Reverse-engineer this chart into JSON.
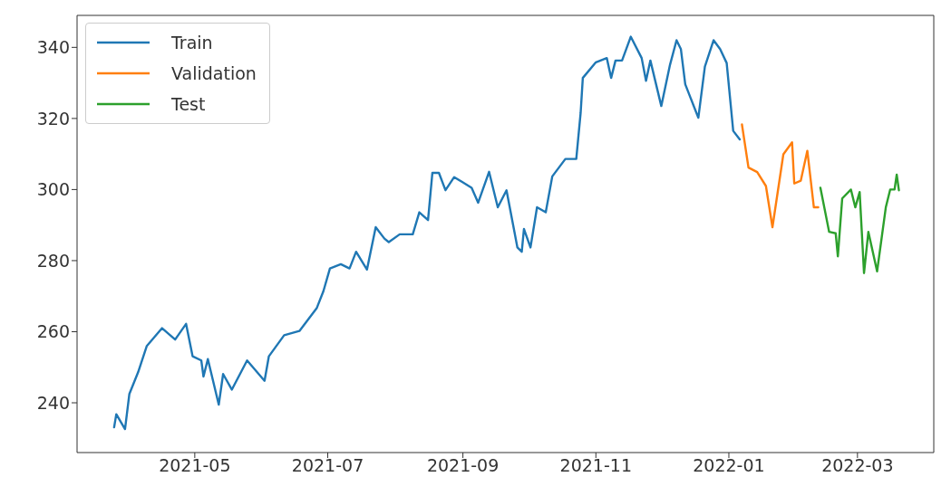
{
  "chart_data": {
    "type": "line",
    "xlim": [
      "2021-03-08",
      "2022-04-05"
    ],
    "xticks": [
      "2021-05",
      "2021-07",
      "2021-09",
      "2021-11",
      "2022-01",
      "2022-03"
    ],
    "ylim": [
      226,
      349
    ],
    "yticks": [
      240,
      260,
      280,
      300,
      320,
      340
    ],
    "legend": "top left",
    "line_style": "solid",
    "marker": "none",
    "series": [
      {
        "name": "Train",
        "color": "#1f77b4",
        "x": [
          "2021-03-25",
          "2021-03-26",
          "2021-03-30",
          "2021-04-01",
          "2021-04-05",
          "2021-04-09",
          "2021-04-16",
          "2021-04-22",
          "2021-04-27",
          "2021-04-30",
          "2021-05-04",
          "2021-05-05",
          "2021-05-07",
          "2021-05-12",
          "2021-05-14",
          "2021-05-18",
          "2021-05-25",
          "2021-06-02",
          "2021-06-04",
          "2021-06-11",
          "2021-06-18",
          "2021-06-26",
          "2021-06-29",
          "2021-07-02",
          "2021-07-07",
          "2021-07-11",
          "2021-07-14",
          "2021-07-19",
          "2021-07-23",
          "2021-07-27",
          "2021-07-29",
          "2021-08-03",
          "2021-08-09",
          "2021-08-12",
          "2021-08-16",
          "2021-08-18",
          "2021-08-21",
          "2021-08-24",
          "2021-08-28",
          "2021-09-05",
          "2021-09-08",
          "2021-09-13",
          "2021-09-17",
          "2021-09-21",
          "2021-09-26",
          "2021-09-28",
          "2021-09-29",
          "2021-10-02",
          "2021-10-05",
          "2021-10-09",
          "2021-10-12",
          "2021-10-18",
          "2021-10-23",
          "2021-10-25",
          "2021-10-26",
          "2021-11-01",
          "2021-11-06",
          "2021-11-08",
          "2021-11-10",
          "2021-11-13",
          "2021-11-17",
          "2021-11-22",
          "2021-11-24",
          "2021-11-26",
          "2021-12-01",
          "2021-12-05",
          "2021-12-08",
          "2021-12-10",
          "2021-12-12",
          "2021-12-18",
          "2021-12-21",
          "2021-12-25",
          "2021-12-28",
          "2021-12-31",
          "2022-01-03",
          "2022-01-06"
        ],
        "values": [
          233.1,
          236.8,
          232.6,
          242.5,
          248.6,
          256,
          261,
          257.8,
          262.2,
          253.1,
          251.9,
          247.4,
          252.3,
          239.5,
          248.1,
          243.7,
          251.9,
          246.2,
          253.1,
          259,
          260.2,
          266.7,
          271.4,
          277.8,
          279,
          277.8,
          282.5,
          277.5,
          289.4,
          286.2,
          285.2,
          287.4,
          287.4,
          293.6,
          291.4,
          304.7,
          304.7,
          299.8,
          303.5,
          300.5,
          296.3,
          305,
          295,
          299.8,
          283.7,
          282.5,
          288.9,
          283.7,
          295,
          293.6,
          303.7,
          308.6,
          308.6,
          321.5,
          331.4,
          335.8,
          337,
          331.4,
          336.3,
          336.3,
          343,
          337,
          330.6,
          336.3,
          323.5,
          335.1,
          342,
          339.5,
          329.6,
          320.2,
          334.6,
          342,
          339.5,
          335.6,
          316.5,
          314.1
        ]
      },
      {
        "name": "Validation",
        "color": "#ff7f0e",
        "x": [
          "2022-01-07",
          "2022-01-10",
          "2022-01-14",
          "2022-01-18",
          "2022-01-21",
          "2022-01-26",
          "2022-01-30",
          "2022-01-31",
          "2022-02-03",
          "2022-02-06",
          "2022-02-09",
          "2022-02-11"
        ],
        "values": [
          318.3,
          306.2,
          304.9,
          301,
          289.4,
          309.9,
          313.3,
          301.7,
          302.5,
          310.9,
          295,
          295
        ]
      },
      {
        "name": "Test",
        "color": "#2ca02c",
        "x": [
          "2022-02-12",
          "2022-02-16",
          "2022-02-19",
          "2022-02-20",
          "2022-02-22",
          "2022-02-26",
          "2022-02-28",
          "2022-03-02",
          "2022-03-04",
          "2022-03-06",
          "2022-03-10",
          "2022-03-14",
          "2022-03-16",
          "2022-03-18",
          "2022-03-19",
          "2022-03-20"
        ],
        "values": [
          300.5,
          288.1,
          287.7,
          281.2,
          297.5,
          300,
          295,
          299.3,
          276.5,
          288.1,
          277,
          295,
          300,
          300,
          304.2,
          299.8
        ]
      }
    ]
  }
}
